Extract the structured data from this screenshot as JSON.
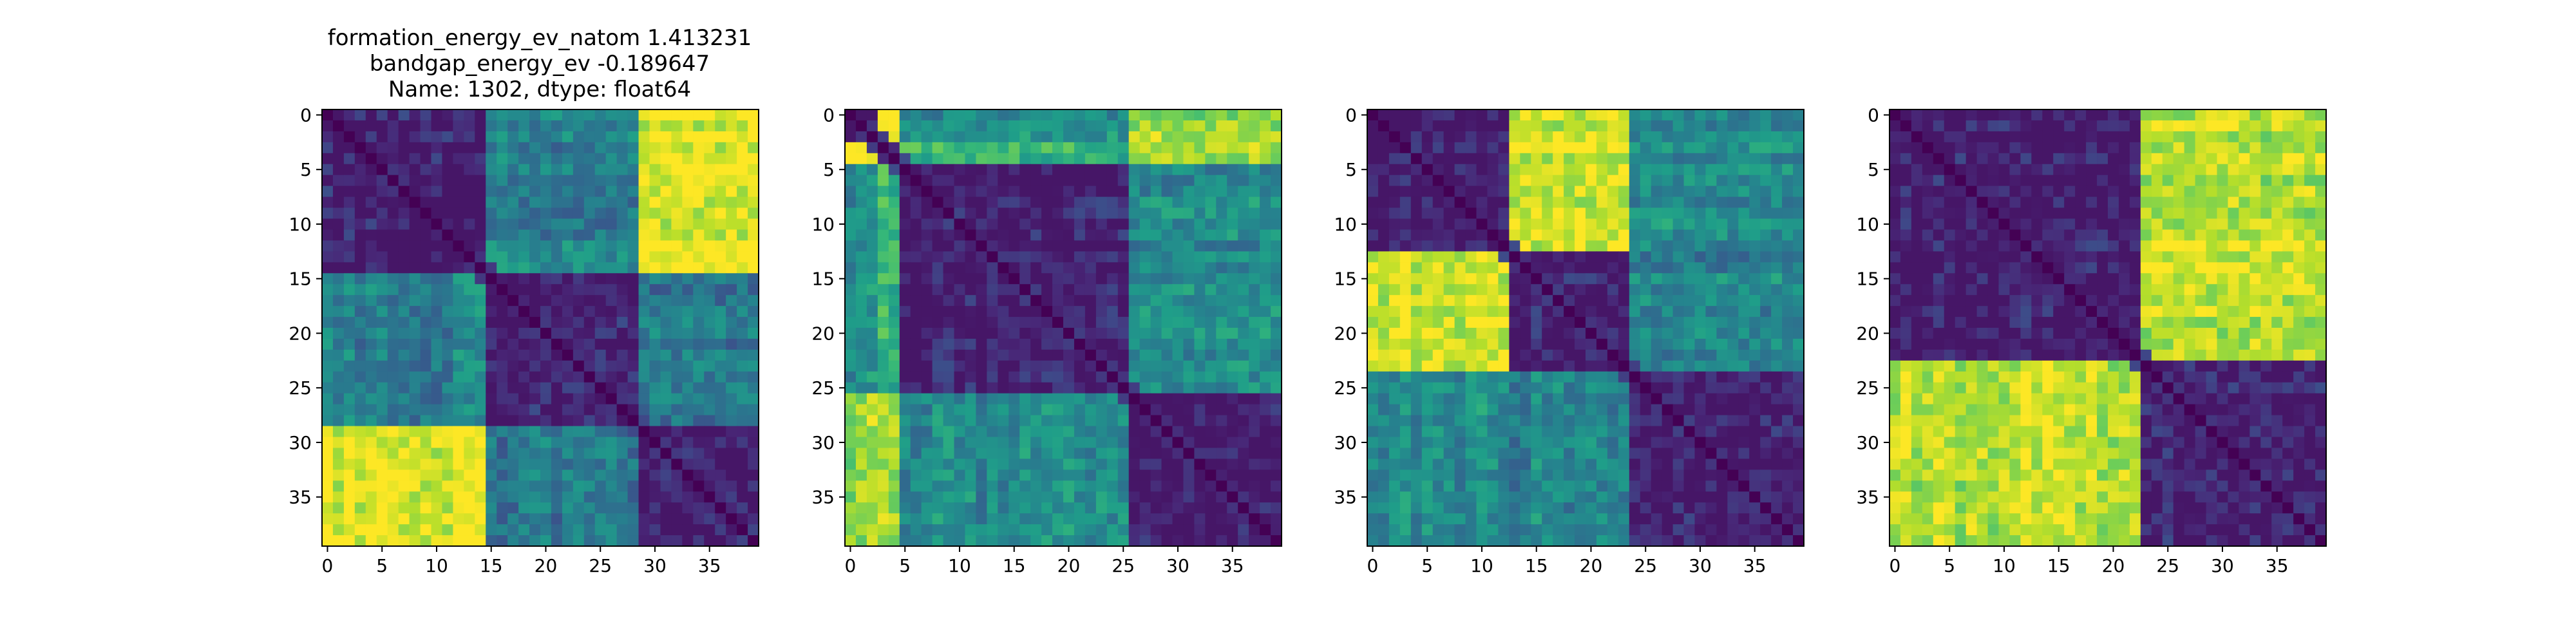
{
  "figure": {
    "title_lines": [
      "formation_energy_ev_natom    1.413231",
      "bandgap_energy_ev          -0.189647",
      "Name: 1302, dtype: float64"
    ]
  },
  "chart_data": [
    {
      "type": "heatmap",
      "colormap": "viridis",
      "size": 40,
      "blocks": [
        [
          0,
          14
        ],
        [
          15,
          28
        ],
        [
          29,
          39
        ]
      ],
      "block_pattern": [
        [
          0.0,
          0.35,
          0.88
        ],
        [
          0.35,
          0.0,
          0.32
        ],
        [
          0.88,
          0.32,
          0.0
        ]
      ],
      "x_ticks": [
        0,
        5,
        10,
        15,
        20,
        25,
        30,
        35
      ],
      "y_ticks": [
        0,
        5,
        10,
        15,
        20,
        25,
        30,
        35
      ]
    },
    {
      "type": "heatmap",
      "colormap": "viridis",
      "size": 40,
      "blocks": [
        [
          0,
          2
        ],
        [
          3,
          4
        ],
        [
          5,
          25
        ],
        [
          26,
          39
        ]
      ],
      "block_pattern": [
        [
          0.0,
          0.85,
          0.4,
          0.75
        ],
        [
          0.85,
          0.0,
          0.55,
          0.75
        ],
        [
          0.4,
          0.55,
          0.0,
          0.4
        ],
        [
          0.75,
          0.75,
          0.4,
          0.0
        ]
      ],
      "x_ticks": [
        0,
        5,
        10,
        15,
        20,
        25,
        30,
        35
      ],
      "y_ticks": [
        0,
        5,
        10,
        15,
        20,
        25,
        30,
        35
      ]
    },
    {
      "type": "heatmap",
      "colormap": "viridis",
      "size": 40,
      "blocks": [
        [
          0,
          12
        ],
        [
          13,
          23
        ],
        [
          24,
          39
        ]
      ],
      "block_pattern": [
        [
          0.0,
          0.85,
          0.4
        ],
        [
          0.85,
          0.0,
          0.38
        ],
        [
          0.4,
          0.38,
          0.0
        ]
      ],
      "x_ticks": [
        0,
        5,
        10,
        15,
        20,
        25,
        30,
        35
      ],
      "y_ticks": [
        0,
        5,
        10,
        15,
        20,
        25,
        30,
        35
      ]
    },
    {
      "type": "heatmap",
      "colormap": "viridis",
      "size": 40,
      "blocks": [
        [
          0,
          22
        ],
        [
          23,
          39
        ]
      ],
      "block_pattern": [
        [
          0.0,
          0.82
        ],
        [
          0.82,
          0.0
        ]
      ],
      "x_ticks": [
        0,
        5,
        10,
        15,
        20,
        25,
        30,
        35
      ],
      "y_ticks": [
        0,
        5,
        10,
        15,
        20,
        25,
        30,
        35
      ]
    }
  ]
}
